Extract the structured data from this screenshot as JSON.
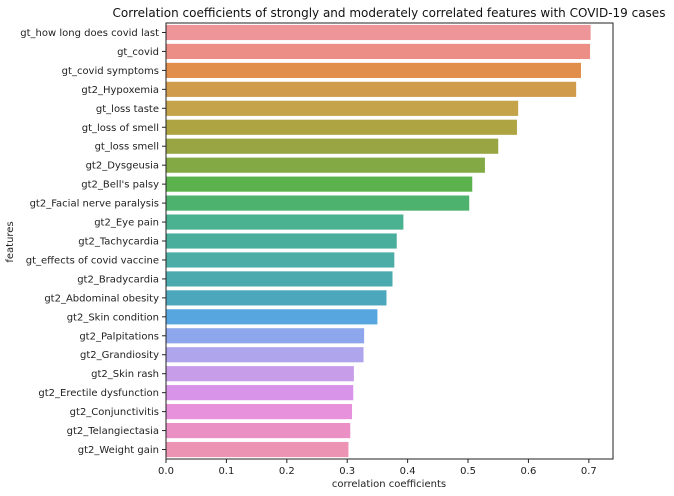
{
  "chart_data": {
    "type": "bar",
    "orientation": "horizontal",
    "title": "Correlation coefficients of strongly and moderately correlated features with COVID-19 cases",
    "xlabel": "correlation coefficients",
    "ylabel": "features",
    "xlim": [
      0,
      0.74
    ],
    "xticks": [
      0.0,
      0.1,
      0.2,
      0.3,
      0.4,
      0.5,
      0.6,
      0.7
    ],
    "xtick_labels": [
      "0.0",
      "0.1",
      "0.2",
      "0.3",
      "0.4",
      "0.5",
      "0.6",
      "0.7"
    ],
    "grid": false,
    "categories": [
      "gt_how long does covid last",
      "gt_covid",
      "gt_covid symptoms",
      "gt2_Hypoxemia",
      "gt_loss taste",
      "gt_loss of smell",
      "gt_loss smell",
      "gt2_Dysgeusia",
      "gt2_Bell's palsy",
      "gt2_Facial nerve paralysis",
      "gt2_Eye pain",
      "gt2_Tachycardia",
      "gt_effects of covid vaccine",
      "gt2_Bradycardia",
      "gt2_Abdominal obesity",
      "gt2_Skin condition",
      "gt2_Palpitations",
      "gt2_Grandiosity",
      "gt2_Skin rash",
      "gt2_Erectile dysfunction",
      "gt2_Conjunctivitis",
      "gt2_Telangiectasia",
      "gt2_Weight gain"
    ],
    "values": [
      0.703,
      0.702,
      0.687,
      0.679,
      0.583,
      0.581,
      0.55,
      0.528,
      0.507,
      0.502,
      0.393,
      0.382,
      0.378,
      0.375,
      0.365,
      0.35,
      0.328,
      0.327,
      0.311,
      0.31,
      0.308,
      0.305,
      0.302
    ],
    "colors": [
      "#ee9599",
      "#ed8e86",
      "#e18d4b",
      "#d19b4c",
      "#c4a34a",
      "#aea441",
      "#98a542",
      "#82a944",
      "#5bb24d",
      "#4db26e",
      "#4ab191",
      "#4aae9c",
      "#4bada6",
      "#4baaae",
      "#4ca6bc",
      "#58a6e0",
      "#8ea6ec",
      "#aea5ec",
      "#c79de9",
      "#d894e8",
      "#e790dc",
      "#eb90c4",
      "#ec92b3"
    ]
  }
}
